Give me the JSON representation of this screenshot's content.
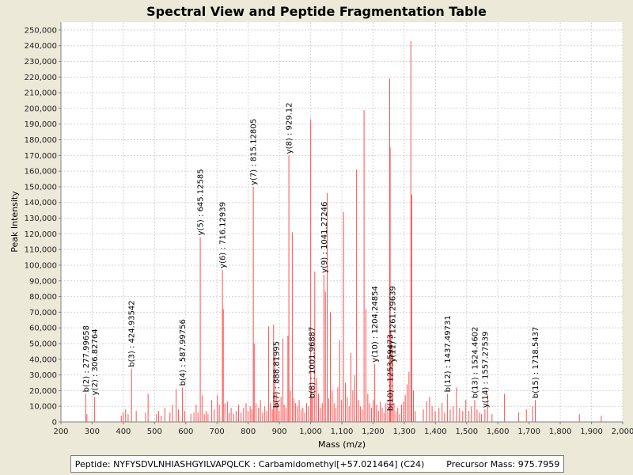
{
  "chart_data": {
    "type": "bar",
    "title": "Spectral View and Peptide Fragmentation Table",
    "xlabel": "Mass (m/z)",
    "ylabel": "Peak Intensity",
    "xlim": [
      200,
      2000
    ],
    "ylim": [
      0,
      255000
    ],
    "x_ticks": [
      200,
      300,
      400,
      500,
      600,
      700,
      800,
      900,
      1000,
      1100,
      1200,
      1300,
      1400,
      1500,
      1600,
      1700,
      1800,
      1900,
      2000
    ],
    "x_tick_labels": [
      "200",
      "300",
      "400",
      "500",
      "600",
      "700",
      "800",
      "900",
      "1,000",
      "1,100",
      "1,200",
      "1,300",
      "1,400",
      "1,500",
      "1,600",
      "1,700",
      "1,800",
      "1,900",
      "2,000"
    ],
    "y_ticks": [
      0,
      10000,
      20000,
      30000,
      40000,
      50000,
      60000,
      70000,
      80000,
      90000,
      100000,
      110000,
      120000,
      130000,
      140000,
      150000,
      160000,
      170000,
      180000,
      190000,
      200000,
      210000,
      220000,
      230000,
      240000,
      250000
    ],
    "y_tick_labels": [
      "0",
      "10,000",
      "20,000",
      "30,000",
      "40,000",
      "50,000",
      "60,000",
      "70,000",
      "80,000",
      "90,000",
      "100,000",
      "110,000",
      "120,000",
      "130,000",
      "140,000",
      "150,000",
      "160,000",
      "170,000",
      "180,000",
      "190,000",
      "200,000",
      "210,000",
      "220,000",
      "230,000",
      "240,000",
      "250,000"
    ],
    "grid": true,
    "color": "#ff5050",
    "peaks": [
      {
        "mz": 277.99658,
        "intensity": 18000
      },
      {
        "mz": 282,
        "intensity": 5000
      },
      {
        "mz": 306.82764,
        "intensity": 16000
      },
      {
        "mz": 392,
        "intensity": 4000
      },
      {
        "mz": 398,
        "intensity": 6000
      },
      {
        "mz": 406,
        "intensity": 8000
      },
      {
        "mz": 414,
        "intensity": 5000
      },
      {
        "mz": 424.93542,
        "intensity": 34000
      },
      {
        "mz": 440,
        "intensity": 7000
      },
      {
        "mz": 470,
        "intensity": 6000
      },
      {
        "mz": 478,
        "intensity": 18000
      },
      {
        "mz": 505,
        "intensity": 5000
      },
      {
        "mz": 512,
        "intensity": 7000
      },
      {
        "mz": 520,
        "intensity": 4000
      },
      {
        "mz": 532,
        "intensity": 9000
      },
      {
        "mz": 548,
        "intensity": 6000
      },
      {
        "mz": 556,
        "intensity": 11000
      },
      {
        "mz": 568,
        "intensity": 21000
      },
      {
        "mz": 575,
        "intensity": 8000
      },
      {
        "mz": 587.99756,
        "intensity": 22000
      },
      {
        "mz": 595,
        "intensity": 7000
      },
      {
        "mz": 615,
        "intensity": 5000
      },
      {
        "mz": 625,
        "intensity": 6000
      },
      {
        "mz": 632,
        "intensity": 11000
      },
      {
        "mz": 638,
        "intensity": 6000
      },
      {
        "mz": 645.12585,
        "intensity": 118000
      },
      {
        "mz": 651,
        "intensity": 17000
      },
      {
        "mz": 658,
        "intensity": 5000
      },
      {
        "mz": 664,
        "intensity": 7000
      },
      {
        "mz": 670,
        "intensity": 5000
      },
      {
        "mz": 682,
        "intensity": 14000
      },
      {
        "mz": 690,
        "intensity": 8000
      },
      {
        "mz": 700,
        "intensity": 17000
      },
      {
        "mz": 706,
        "intensity": 11000
      },
      {
        "mz": 716.12939,
        "intensity": 97000
      },
      {
        "mz": 719,
        "intensity": 72000
      },
      {
        "mz": 724,
        "intensity": 12000
      },
      {
        "mz": 732,
        "intensity": 13000
      },
      {
        "mz": 738,
        "intensity": 6000
      },
      {
        "mz": 744,
        "intensity": 9000
      },
      {
        "mz": 752,
        "intensity": 5000
      },
      {
        "mz": 760,
        "intensity": 7000
      },
      {
        "mz": 768,
        "intensity": 11000
      },
      {
        "mz": 776,
        "intensity": 6000
      },
      {
        "mz": 784,
        "intensity": 9000
      },
      {
        "mz": 792,
        "intensity": 12000
      },
      {
        "mz": 798,
        "intensity": 7000
      },
      {
        "mz": 805,
        "intensity": 10000
      },
      {
        "mz": 810,
        "intensity": 8000
      },
      {
        "mz": 815.12805,
        "intensity": 150000
      },
      {
        "mz": 818,
        "intensity": 50000
      },
      {
        "mz": 824,
        "intensity": 12000
      },
      {
        "mz": 832,
        "intensity": 9000
      },
      {
        "mz": 838,
        "intensity": 14000
      },
      {
        "mz": 845,
        "intensity": 6000
      },
      {
        "mz": 852,
        "intensity": 10000
      },
      {
        "mz": 858,
        "intensity": 7000
      },
      {
        "mz": 864,
        "intensity": 61000
      },
      {
        "mz": 870,
        "intensity": 12000
      },
      {
        "mz": 876,
        "intensity": 8000
      },
      {
        "mz": 880,
        "intensity": 62000
      },
      {
        "mz": 884,
        "intensity": 42000
      },
      {
        "mz": 888.81995,
        "intensity": 18000
      },
      {
        "mz": 893,
        "intensity": 13000
      },
      {
        "mz": 898,
        "intensity": 7000
      },
      {
        "mz": 904,
        "intensity": 16000
      },
      {
        "mz": 910,
        "intensity": 53000
      },
      {
        "mz": 914,
        "intensity": 11000
      },
      {
        "mz": 920,
        "intensity": 9000
      },
      {
        "mz": 926,
        "intensity": 55000
      },
      {
        "mz": 929.12,
        "intensity": 170000
      },
      {
        "mz": 934,
        "intensity": 20000
      },
      {
        "mz": 940,
        "intensity": 121000
      },
      {
        "mz": 945,
        "intensity": 15000
      },
      {
        "mz": 950,
        "intensity": 12000
      },
      {
        "mz": 956,
        "intensity": 10000
      },
      {
        "mz": 962,
        "intensity": 14000
      },
      {
        "mz": 968,
        "intensity": 8000
      },
      {
        "mz": 974,
        "intensity": 9000
      },
      {
        "mz": 980,
        "intensity": 6000
      },
      {
        "mz": 986,
        "intensity": 12000
      },
      {
        "mz": 992,
        "intensity": 10000
      },
      {
        "mz": 999,
        "intensity": 193000
      },
      {
        "mz": 1001.96887,
        "intensity": 22000
      },
      {
        "mz": 1006,
        "intensity": 16000
      },
      {
        "mz": 1012,
        "intensity": 96000
      },
      {
        "mz": 1018,
        "intensity": 28000
      },
      {
        "mz": 1024,
        "intensity": 18000
      },
      {
        "mz": 1030,
        "intensity": 9000
      },
      {
        "mz": 1036,
        "intensity": 12000
      },
      {
        "mz": 1041.27246,
        "intensity": 94000
      },
      {
        "mz": 1046,
        "intensity": 83000
      },
      {
        "mz": 1052,
        "intensity": 146000
      },
      {
        "mz": 1057,
        "intensity": 15000
      },
      {
        "mz": 1062,
        "intensity": 70000
      },
      {
        "mz": 1068,
        "intensity": 20000
      },
      {
        "mz": 1074,
        "intensity": 12000
      },
      {
        "mz": 1080,
        "intensity": 9000
      },
      {
        "mz": 1086,
        "intensity": 22000
      },
      {
        "mz": 1092,
        "intensity": 52000
      },
      {
        "mz": 1098,
        "intensity": 14000
      },
      {
        "mz": 1104,
        "intensity": 134000
      },
      {
        "mz": 1110,
        "intensity": 25000
      },
      {
        "mz": 1116,
        "intensity": 16000
      },
      {
        "mz": 1122,
        "intensity": 10000
      },
      {
        "mz": 1128,
        "intensity": 44000
      },
      {
        "mz": 1134,
        "intensity": 20000
      },
      {
        "mz": 1140,
        "intensity": 30000
      },
      {
        "mz": 1146,
        "intensity": 161000
      },
      {
        "mz": 1152,
        "intensity": 14000
      },
      {
        "mz": 1158,
        "intensity": 10000
      },
      {
        "mz": 1164,
        "intensity": 8000
      },
      {
        "mz": 1170,
        "intensity": 199000
      },
      {
        "mz": 1176,
        "intensity": 72000
      },
      {
        "mz": 1182,
        "intensity": 18000
      },
      {
        "mz": 1188,
        "intensity": 12000
      },
      {
        "mz": 1194,
        "intensity": 9000
      },
      {
        "mz": 1200,
        "intensity": 14000
      },
      {
        "mz": 1204.24854,
        "intensity": 37000
      },
      {
        "mz": 1210,
        "intensity": 11000
      },
      {
        "mz": 1216,
        "intensity": 7000
      },
      {
        "mz": 1222,
        "intensity": 13000
      },
      {
        "mz": 1228,
        "intensity": 9000
      },
      {
        "mz": 1234,
        "intensity": 6000
      },
      {
        "mz": 1240,
        "intensity": 12000
      },
      {
        "mz": 1246,
        "intensity": 10000
      },
      {
        "mz": 1252,
        "intensity": 219000
      },
      {
        "mz": 1253.59473,
        "intensity": 175000
      },
      {
        "mz": 1256,
        "intensity": 58000
      },
      {
        "mz": 1261.29639,
        "intensity": 47000
      },
      {
        "mz": 1266,
        "intensity": 12000
      },
      {
        "mz": 1272,
        "intensity": 7000
      },
      {
        "mz": 1278,
        "intensity": 9000
      },
      {
        "mz": 1284,
        "intensity": 5000
      },
      {
        "mz": 1290,
        "intensity": 11000
      },
      {
        "mz": 1296,
        "intensity": 13000
      },
      {
        "mz": 1302,
        "intensity": 17000
      },
      {
        "mz": 1308,
        "intensity": 24000
      },
      {
        "mz": 1314,
        "intensity": 32000
      },
      {
        "mz": 1320,
        "intensity": 243000
      },
      {
        "mz": 1323,
        "intensity": 145000
      },
      {
        "mz": 1328,
        "intensity": 20000
      },
      {
        "mz": 1334,
        "intensity": 7000
      },
      {
        "mz": 1360,
        "intensity": 8000
      },
      {
        "mz": 1370,
        "intensity": 13000
      },
      {
        "mz": 1380,
        "intensity": 16000
      },
      {
        "mz": 1388,
        "intensity": 10000
      },
      {
        "mz": 1398,
        "intensity": 7000
      },
      {
        "mz": 1410,
        "intensity": 9000
      },
      {
        "mz": 1420,
        "intensity": 12000
      },
      {
        "mz": 1428,
        "intensity": 6000
      },
      {
        "mz": 1437.49731,
        "intensity": 18000
      },
      {
        "mz": 1446,
        "intensity": 8000
      },
      {
        "mz": 1456,
        "intensity": 10000
      },
      {
        "mz": 1466,
        "intensity": 22000
      },
      {
        "mz": 1476,
        "intensity": 9000
      },
      {
        "mz": 1486,
        "intensity": 7000
      },
      {
        "mz": 1496,
        "intensity": 14000
      },
      {
        "mz": 1506,
        "intensity": 7000
      },
      {
        "mz": 1514,
        "intensity": 10000
      },
      {
        "mz": 1524.4602,
        "intensity": 14000
      },
      {
        "mz": 1532,
        "intensity": 8000
      },
      {
        "mz": 1540,
        "intensity": 6000
      },
      {
        "mz": 1546,
        "intensity": 5000
      },
      {
        "mz": 1557.27539,
        "intensity": 8000
      },
      {
        "mz": 1566,
        "intensity": 18000
      },
      {
        "mz": 1580,
        "intensity": 5000
      },
      {
        "mz": 1620,
        "intensity": 18000
      },
      {
        "mz": 1665,
        "intensity": 6000
      },
      {
        "mz": 1690,
        "intensity": 8000
      },
      {
        "mz": 1710,
        "intensity": 10000
      },
      {
        "mz": 1718.5437,
        "intensity": 14000
      },
      {
        "mz": 1860,
        "intensity": 5000
      },
      {
        "mz": 1930,
        "intensity": 4000
      }
    ],
    "ion_labels": [
      {
        "text": "b(2) : 277.99658",
        "mz": 277.99658,
        "intensity": 18000
      },
      {
        "text": "y(2) : 306.82764",
        "mz": 306.82764,
        "intensity": 16000
      },
      {
        "text": "b(3) : 424.93542",
        "mz": 424.93542,
        "intensity": 34000
      },
      {
        "text": "b(4) : 587.99756",
        "mz": 587.99756,
        "intensity": 22000
      },
      {
        "text": "y(5) : 645.12585",
        "mz": 645.12585,
        "intensity": 118000
      },
      {
        "text": "y(6) : 716.12939",
        "mz": 716.12939,
        "intensity": 97000
      },
      {
        "text": "y(7) : 815.12805",
        "mz": 815.12805,
        "intensity": 150000
      },
      {
        "text": "b(7) : 888.81995",
        "mz": 888.81995,
        "intensity": 8000
      },
      {
        "text": "y(8) : 929.12",
        "mz": 929.12,
        "intensity": 170000
      },
      {
        "text": "b(8) : 1001.96887",
        "mz": 1001.96887,
        "intensity": 14000
      },
      {
        "text": "y(9) : 1041.27246",
        "mz": 1041.27246,
        "intensity": 94000
      },
      {
        "text": "y(10) : 1204.24854",
        "mz": 1204.24854,
        "intensity": 37000
      },
      {
        "text": "b(10) : 1253.59473",
        "mz": 1253.59473,
        "intensity": 6000
      },
      {
        "text": "y(11) : 1261.29639",
        "mz": 1261.29639,
        "intensity": 37000
      },
      {
        "text": "b(12) : 1437.49731",
        "mz": 1437.49731,
        "intensity": 18000
      },
      {
        "text": "b(13) : 1524.4602",
        "mz": 1524.4602,
        "intensity": 14000
      },
      {
        "text": "y(14) : 1557.27539",
        "mz": 1557.27539,
        "intensity": 8000
      },
      {
        "text": "b(15) : 1718.5437",
        "mz": 1718.5437,
        "intensity": 14000
      }
    ]
  },
  "footer": {
    "peptide_text": "Peptide: NYFYSDVLNHIASHGYILVAPQLCK : Carbamidomethyl[+57.021464] (C24)",
    "precursor_text": "Precursor Mass: 975.7959"
  }
}
